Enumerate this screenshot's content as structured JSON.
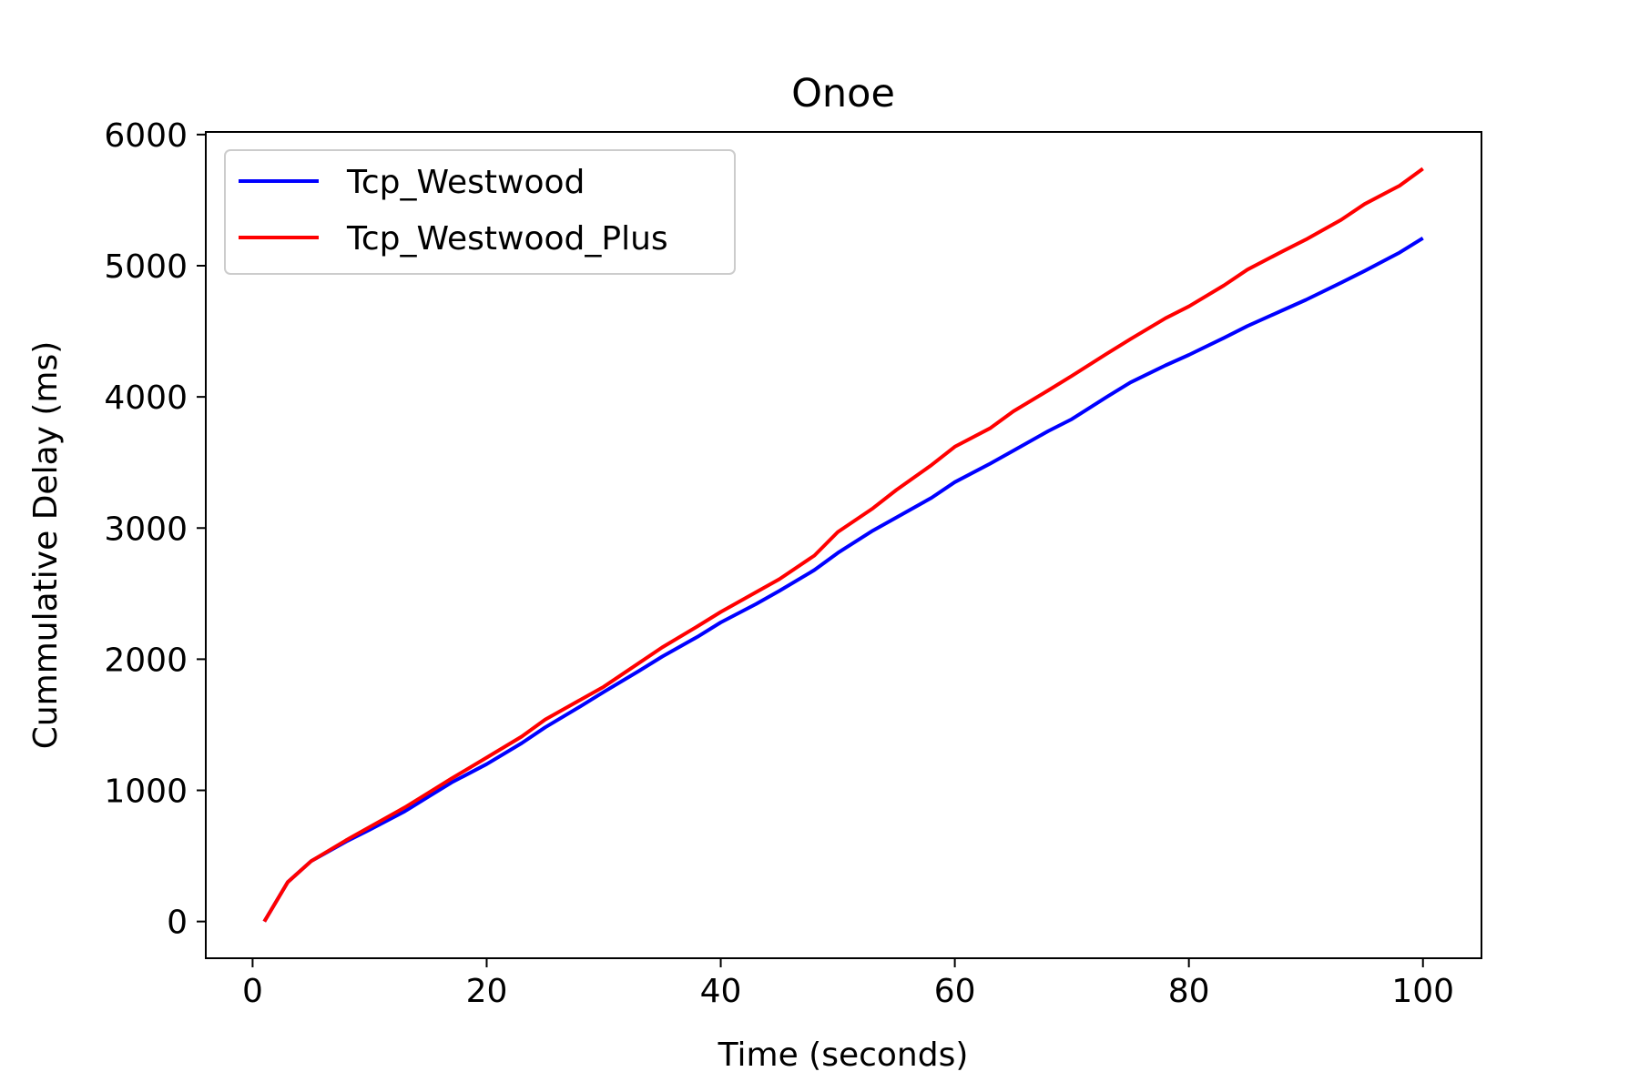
{
  "chart_data": {
    "type": "line",
    "title": "Onoe",
    "xlabel": "Time (seconds)",
    "ylabel": "Cummulative Delay (ms)",
    "xlim": [
      -4,
      105
    ],
    "ylim": [
      -280,
      6020
    ],
    "xticks": [
      0,
      20,
      40,
      60,
      80,
      100
    ],
    "yticks": [
      0,
      1000,
      2000,
      3000,
      4000,
      5000,
      6000
    ],
    "grid": false,
    "legend": "upper-left",
    "x": [
      1,
      3,
      5,
      8,
      10,
      13,
      15,
      17,
      20,
      23,
      25,
      28,
      30,
      33,
      35,
      38,
      40,
      43,
      45,
      48,
      50,
      53,
      55,
      58,
      60,
      63,
      65,
      68,
      70,
      73,
      75,
      78,
      80,
      83,
      85,
      88,
      90,
      93,
      95,
      98,
      100
    ],
    "series": [
      {
        "name": "Tcp_Westwood",
        "color": "#0000ff",
        "values": [
          0,
          300,
          460,
          610,
          700,
          840,
          950,
          1060,
          1200,
          1360,
          1480,
          1640,
          1750,
          1910,
          2020,
          2170,
          2280,
          2420,
          2520,
          2680,
          2810,
          2980,
          3080,
          3230,
          3350,
          3490,
          3590,
          3740,
          3830,
          4000,
          4110,
          4240,
          4320,
          4450,
          4540,
          4660,
          4740,
          4870,
          4960,
          5100,
          5210
        ]
      },
      {
        "name": "Tcp_Westwood_Plus",
        "color": "#ff0000",
        "values": [
          0,
          300,
          460,
          620,
          720,
          870,
          980,
          1090,
          1250,
          1410,
          1540,
          1690,
          1790,
          1970,
          2090,
          2250,
          2360,
          2510,
          2610,
          2790,
          2970,
          3150,
          3290,
          3480,
          3620,
          3760,
          3890,
          4050,
          4160,
          4330,
          4440,
          4600,
          4690,
          4850,
          4970,
          5110,
          5200,
          5350,
          5470,
          5610,
          5740
        ]
      }
    ]
  }
}
